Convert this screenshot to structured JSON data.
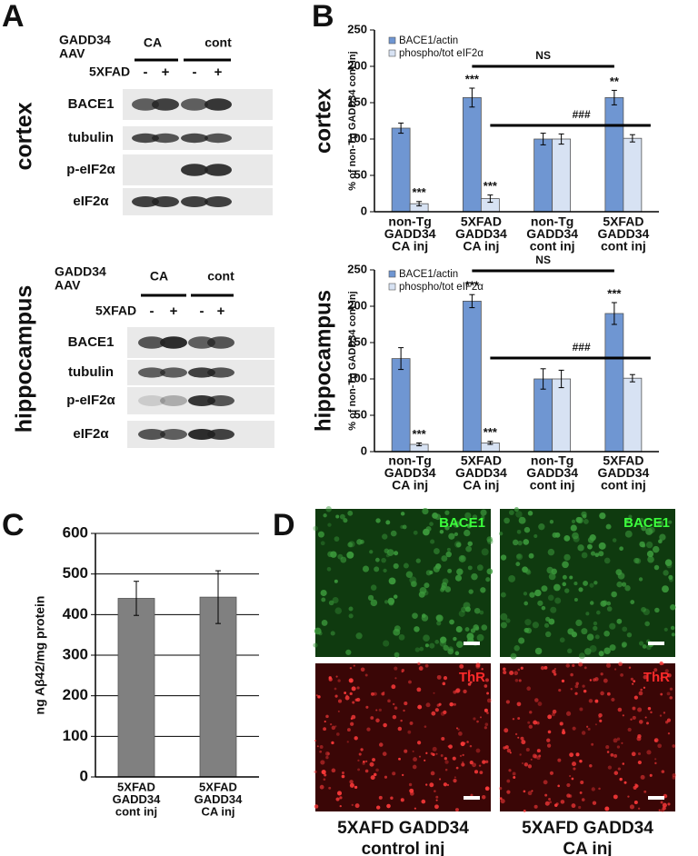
{
  "panels": [
    "A",
    "B",
    "C",
    "D"
  ],
  "blots": [
    {
      "region": "cortex",
      "construct": [
        "GADD34",
        "AAV"
      ],
      "groups": [
        "CA",
        "cont"
      ],
      "genotype": "5XFAD",
      "lanes": [
        "-",
        "+",
        "-",
        "+"
      ],
      "rows": [
        "BACE1",
        "tubulin",
        "p-eIF2α",
        "eIF2α"
      ]
    },
    {
      "region": "hippocampus",
      "construct": [
        "GADD34",
        "AAV"
      ],
      "groups": [
        "CA",
        "cont"
      ],
      "genotype": "5XFAD",
      "lanes": [
        "-",
        "+",
        "-",
        "+"
      ],
      "rows": [
        "BACE1",
        "tubulin",
        "p-eIF2α",
        "eIF2α"
      ]
    }
  ],
  "chart_data": [
    {
      "type": "bar",
      "region": "cortex",
      "y_label": "% of non-Tg GADD34 cont inj",
      "categories": [
        [
          "non-Tg",
          "GADD34",
          "CA inj"
        ],
        [
          "5XFAD",
          "GADD34",
          "CA inj"
        ],
        [
          "non-Tg",
          "GADD34",
          "cont inj"
        ],
        [
          "5XFAD",
          "GADD34",
          "cont inj"
        ]
      ],
      "series": [
        {
          "name": "BACE1/actin",
          "color": "#6f96d2",
          "values": [
            115,
            157,
            100,
            157
          ],
          "errors": [
            7,
            13,
            8,
            10
          ],
          "significance": [
            null,
            "***",
            null,
            "**"
          ]
        },
        {
          "name": "phospho/tot eIF2α",
          "color": "#d7e2f3",
          "values": [
            11,
            18,
            100,
            101
          ],
          "errors": [
            3,
            5,
            7,
            5
          ],
          "significance": [
            "***",
            "***",
            null,
            null
          ]
        }
      ],
      "comparisons": [
        {
          "label": "NS",
          "from": 1,
          "to": 3
        },
        {
          "label": "###",
          "from": 1,
          "to": 3
        }
      ],
      "ylim": [
        0,
        250
      ],
      "yticks": [
        0,
        50,
        100,
        150,
        200,
        250
      ],
      "grid": false,
      "legend": "upper left"
    },
    {
      "type": "bar",
      "region": "hippocampus",
      "y_label": "% of non-Tg GADD34 cont inj",
      "categories": [
        [
          "non-Tg",
          "GADD34",
          "CA inj"
        ],
        [
          "5XFAD",
          "GADD34",
          "CA inj"
        ],
        [
          "non-Tg",
          "GADD34",
          "cont inj"
        ],
        [
          "5XFAD",
          "GADD34",
          "cont inj"
        ]
      ],
      "series": [
        {
          "name": "BACE1/actin",
          "color": "#6f96d2",
          "values": [
            128,
            207,
            100,
            190
          ],
          "errors": [
            15,
            9,
            14,
            15
          ],
          "significance": [
            null,
            "***",
            null,
            "***"
          ]
        },
        {
          "name": "phospho/tot eIF2α",
          "color": "#d7e2f3",
          "values": [
            10,
            12,
            100,
            101
          ],
          "errors": [
            2,
            2,
            12,
            5
          ],
          "significance": [
            "***",
            "***",
            null,
            null
          ]
        }
      ],
      "comparisons": [
        {
          "label": "NS",
          "from": 1,
          "to": 3
        },
        {
          "label": "###",
          "from": 1,
          "to": 3
        }
      ],
      "ylim": [
        0,
        250
      ],
      "yticks": [
        0,
        50,
        100,
        150,
        200,
        250
      ],
      "grid": false,
      "legend": "upper left"
    },
    {
      "type": "bar",
      "y_label": "ng Aβ42/mg protein",
      "categories": [
        [
          "5XFAD",
          "GADD34",
          "cont inj"
        ],
        [
          "5XFAD",
          "GADD34",
          "CA inj"
        ]
      ],
      "values": [
        440,
        443
      ],
      "errors": [
        42,
        65
      ],
      "color": "#808080",
      "ylim": [
        0,
        600
      ],
      "yticks": [
        0,
        100,
        200,
        300,
        400,
        500,
        600
      ],
      "grid": true
    }
  ],
  "micrographs": {
    "stains": [
      "BACE1",
      "ThR"
    ],
    "columns": [
      [
        "5XAFD GADD34",
        "control inj"
      ],
      [
        "5XAFD GADD34",
        "CA inj"
      ]
    ]
  }
}
